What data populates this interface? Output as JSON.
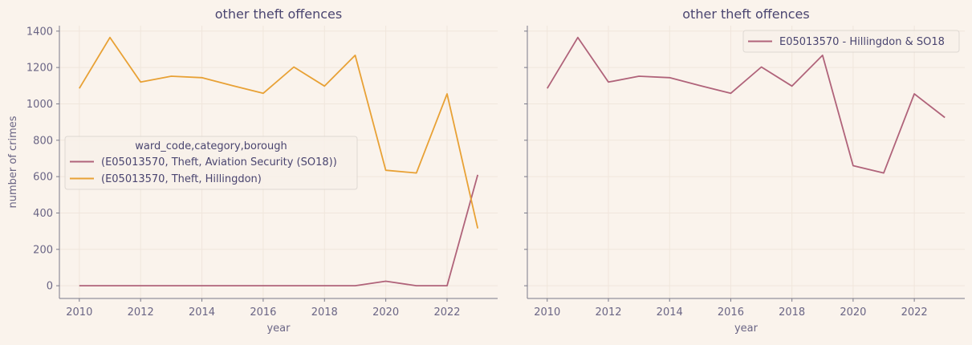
{
  "colors": {
    "background": "#faf3ec",
    "axis": "#7a7a8a",
    "grid": "#f0e6dc",
    "text": "#4a4570",
    "tick_text": "#6a6585",
    "aviation_series": "#b0637a",
    "hillingdon_series": "#e8a135"
  },
  "chart_data": [
    {
      "type": "line",
      "title": "other theft offences",
      "xlabel": "year",
      "ylabel": "number of crimes",
      "xlim": [
        2009.35,
        2023.65
      ],
      "ylim": [
        -70,
        1430
      ],
      "xticks": [
        2010,
        2012,
        2014,
        2016,
        2018,
        2020,
        2022
      ],
      "yticks": [
        0,
        200,
        400,
        600,
        800,
        1000,
        1200,
        1400
      ],
      "grid": true,
      "legend": {
        "title": "ward_code,category,borough",
        "placement": "center-left"
      },
      "x": [
        2010,
        2011,
        2012,
        2013,
        2014,
        2015,
        2016,
        2017,
        2018,
        2019,
        2020,
        2021,
        2022,
        2023
      ],
      "series": [
        {
          "name": "(E05013570, Theft, Aviation Security (SO18))",
          "color": "#b0637a",
          "values": [
            0,
            0,
            0,
            0,
            0,
            0,
            0,
            0,
            0,
            0,
            25,
            0,
            0,
            610
          ]
        },
        {
          "name": "(E05013570, Theft, Hillingdon)",
          "color": "#e8a135",
          "values": [
            1085,
            1365,
            1120,
            1152,
            1144,
            1100,
            1058,
            1203,
            1098,
            1267,
            635,
            620,
            1055,
            315
          ]
        }
      ]
    },
    {
      "type": "line",
      "title": "other theft offences",
      "xlabel": "year",
      "ylabel": "",
      "xlim": [
        2009.35,
        2023.65
      ],
      "ylim": [
        -70,
        1430
      ],
      "xticks": [
        2010,
        2012,
        2014,
        2016,
        2018,
        2020,
        2022
      ],
      "yticks": [
        0,
        200,
        400,
        600,
        800,
        1000,
        1200,
        1400
      ],
      "shared_y": true,
      "grid": true,
      "legend": {
        "title": "",
        "placement": "top-right"
      },
      "x": [
        2010,
        2011,
        2012,
        2013,
        2014,
        2015,
        2016,
        2017,
        2018,
        2019,
        2020,
        2021,
        2022,
        2023
      ],
      "series": [
        {
          "name": "E05013570 - Hillingdon & SO18",
          "color": "#b0637a",
          "values": [
            1085,
            1365,
            1120,
            1152,
            1144,
            1100,
            1058,
            1203,
            1098,
            1267,
            660,
            620,
            1055,
            925
          ]
        }
      ]
    }
  ]
}
